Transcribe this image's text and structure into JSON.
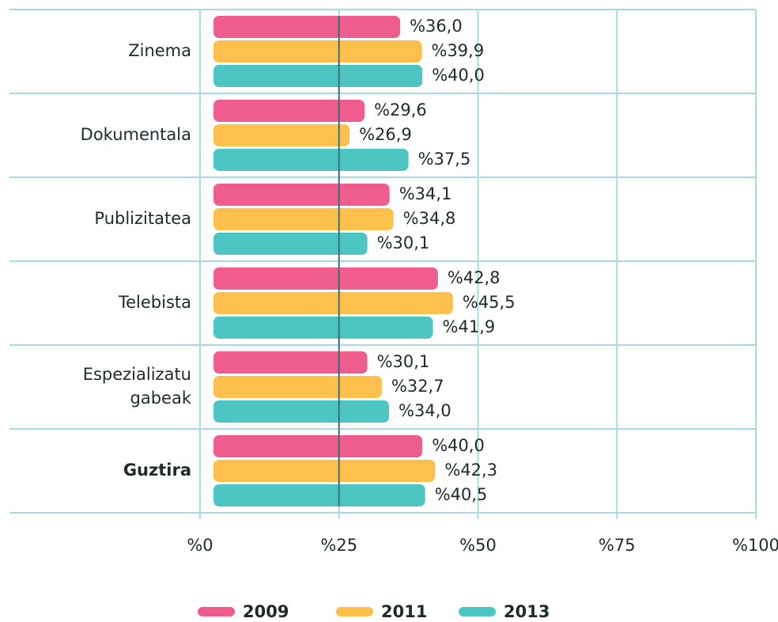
{
  "chart_data": {
    "type": "bar",
    "orientation": "horizontal",
    "categories": [
      "Zinema",
      "Dokumentala",
      "Publizitatea",
      "Telebista",
      "Espezializatu gabeak",
      "Guztira"
    ],
    "bold_category_index": 5,
    "series": [
      {
        "name": "2009",
        "color": "#ef5d8f",
        "values": [
          36.0,
          29.6,
          34.1,
          42.8,
          30.1,
          40.0
        ],
        "value_labels": [
          "%36,0",
          "%29,6",
          "%34,1",
          "%42,8",
          "%30,1",
          "%40,0"
        ]
      },
      {
        "name": "2011",
        "color": "#fdc04c",
        "values": [
          39.9,
          26.9,
          34.8,
          45.5,
          32.7,
          42.3
        ],
        "value_labels": [
          "%39,9",
          "%26,9",
          "%34,8",
          "%45,5",
          "%32,7",
          "%42,3"
        ]
      },
      {
        "name": "2013",
        "color": "#4cc5c3",
        "values": [
          40.0,
          37.5,
          30.1,
          41.9,
          34.0,
          40.5
        ],
        "value_labels": [
          "%40,0",
          "%37,5",
          "%30,1",
          "%41,9",
          "%34,0",
          "%40,5"
        ]
      }
    ],
    "xlim": [
      0,
      100
    ],
    "xticks": [
      {
        "value": 0,
        "label": "%0"
      },
      {
        "value": 25,
        "label": "%25"
      },
      {
        "value": 50,
        "label": "%50"
      },
      {
        "value": 75,
        "label": "%75"
      },
      {
        "value": 100,
        "label": "%100"
      }
    ],
    "grid": true,
    "legend": "bottom"
  }
}
